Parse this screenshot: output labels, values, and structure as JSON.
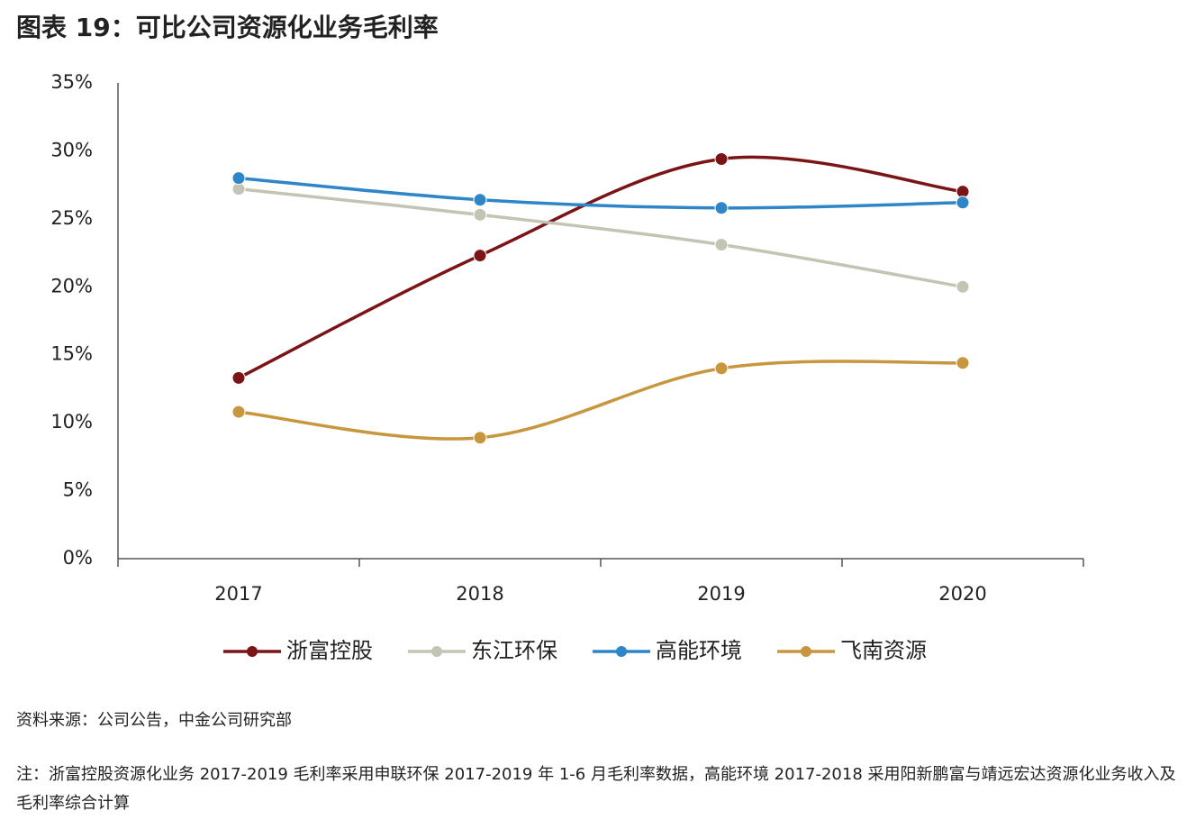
{
  "chart_data": {
    "type": "line",
    "title": "图表 19：可比公司资源化业务毛利率",
    "categories": [
      "2017",
      "2018",
      "2019",
      "2020"
    ],
    "series": [
      {
        "name": "浙富控股",
        "color": "#7b1416",
        "values": [
          13.3,
          22.3,
          29.4,
          27.0
        ]
      },
      {
        "name": "东江环保",
        "color": "#c4c4b4",
        "values": [
          27.2,
          25.3,
          23.1,
          20.0
        ]
      },
      {
        "name": "高能环境",
        "color": "#2e86c8",
        "values": [
          28.0,
          26.4,
          25.8,
          26.2
        ]
      },
      {
        "name": "飞南资源",
        "color": "#c8963e",
        "values": [
          10.8,
          8.9,
          14.0,
          14.4
        ]
      }
    ],
    "ylim": [
      0,
      35
    ],
    "yticks": [
      {
        "value": 0,
        "label": "0%"
      },
      {
        "value": 5,
        "label": "5%"
      },
      {
        "value": 10,
        "label": "10%"
      },
      {
        "value": 15,
        "label": "15%"
      },
      {
        "value": 20,
        "label": "20%"
      },
      {
        "value": 25,
        "label": "25%"
      },
      {
        "value": 30,
        "label": "30%"
      },
      {
        "value": 35,
        "label": "35%"
      }
    ],
    "grid": false,
    "smooth": true,
    "legend": "bottom",
    "source": "资料来源：公司公告，中金公司研究部",
    "note": "注：浙富控股资源化业务 2017-2019 毛利率采用申联环保 2017-2019 年 1-6 月毛利率数据，高能环境 2017-2018 采用阳新鹏富与靖远宏达资源化业务收入及毛利率综合计算"
  }
}
